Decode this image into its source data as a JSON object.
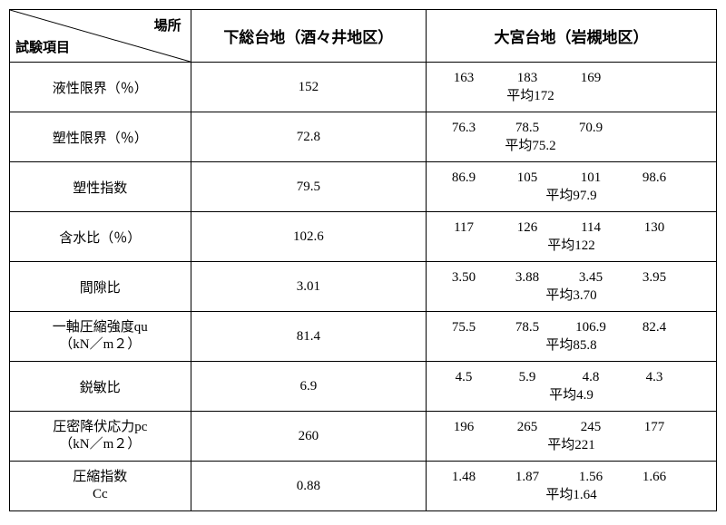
{
  "header": {
    "diag_left": "試験項目",
    "diag_right": "場所",
    "col_a": "下総台地（酒々井地区）",
    "col_b": "大宮台地（岩槻地区）"
  },
  "rows": [
    {
      "label_lines": [
        "液性限界（％）"
      ],
      "a": "152",
      "b_values": [
        "163",
        "183",
        "169"
      ],
      "b_avg": "平均172",
      "avg_shift": true
    },
    {
      "label_lines": [
        "塑性限界（％）"
      ],
      "a": "72.8",
      "b_values": [
        "76.3",
        "78.5",
        "70.9"
      ],
      "b_avg": "平均75.2",
      "avg_shift": true
    },
    {
      "label_lines": [
        "塑性指数"
      ],
      "a": "79.5",
      "b_values": [
        "86.9",
        "105",
        "101",
        "98.6"
      ],
      "b_avg": "平均97.9",
      "avg_shift": false
    },
    {
      "label_lines": [
        "含水比（％）"
      ],
      "a": "102.6",
      "b_values": [
        "117",
        "126",
        "114",
        "130"
      ],
      "b_avg": "平均122",
      "avg_shift": false
    },
    {
      "label_lines": [
        "間隙比"
      ],
      "a": "3.01",
      "b_values": [
        "3.50",
        "3.88",
        "3.45",
        "3.95"
      ],
      "b_avg": "平均3.70",
      "avg_shift": false
    },
    {
      "label_lines": [
        "一軸圧縮強度qu",
        "（kN／m２）"
      ],
      "a": "81.4",
      "b_values": [
        "75.5",
        "78.5",
        "106.9",
        "82.4"
      ],
      "b_avg": "平均85.8",
      "avg_shift": false
    },
    {
      "label_lines": [
        "鋭敏比"
      ],
      "a": "6.9",
      "b_values": [
        "4.5",
        "5.9",
        "4.8",
        "4.3"
      ],
      "b_avg": "平均4.9",
      "avg_shift": false
    },
    {
      "label_lines": [
        "圧密降伏応力pc",
        "（kN／m２）"
      ],
      "a": "260",
      "b_values": [
        "196",
        "265",
        "245",
        "177"
      ],
      "b_avg": "平均221",
      "avg_shift": false
    },
    {
      "label_lines": [
        "圧縮指数",
        "Cc"
      ],
      "a": "0.88",
      "b_values": [
        "1.48",
        "1.87",
        "1.56",
        "1.66"
      ],
      "b_avg": "平均1.64",
      "avg_shift": false
    }
  ]
}
